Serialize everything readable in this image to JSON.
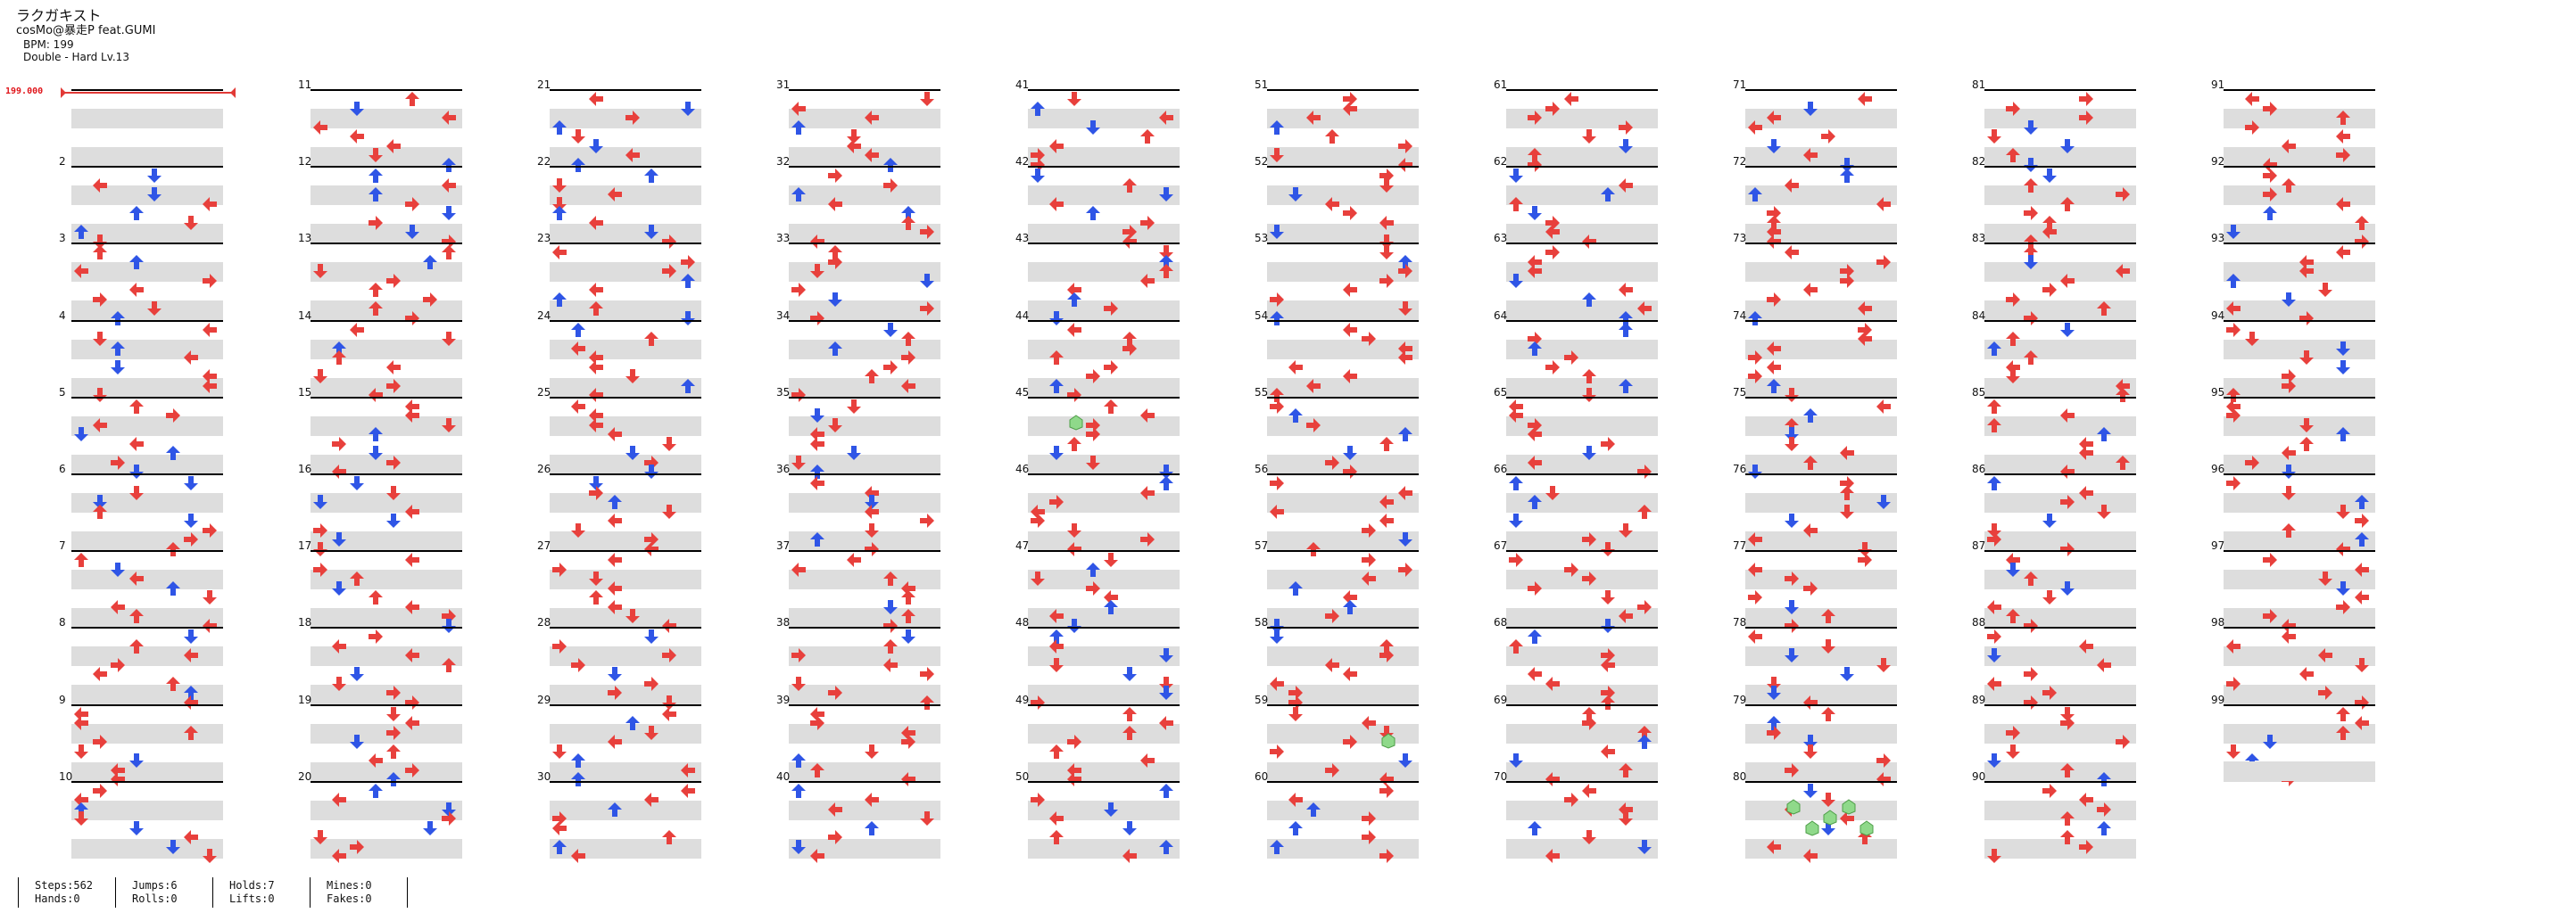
{
  "song": {
    "title": "ラクガキスト",
    "artist": "cosMo@暴走P feat.GUMI",
    "bpm_line": "BPM: 199",
    "difficulty_line": "Double - Hard  Lv.13"
  },
  "bpm_marker": "199.000",
  "chart": {
    "total_measures": 99,
    "measures_per_column": 10,
    "lanes": 8
  },
  "colors": {
    "red_note": "#e8403c",
    "blue_note": "#2f55e6",
    "hold_head": "#8fd98a",
    "stripe": "#dddddd"
  },
  "stats": {
    "steps": "Steps:562",
    "hands": "Hands:0",
    "jumps": "Jumps:6",
    "rolls": "Rolls:0",
    "holds": "Holds:7",
    "lifts": "Lifts:0",
    "mines": "Mines:0",
    "fakes": "Fakes:0"
  }
}
